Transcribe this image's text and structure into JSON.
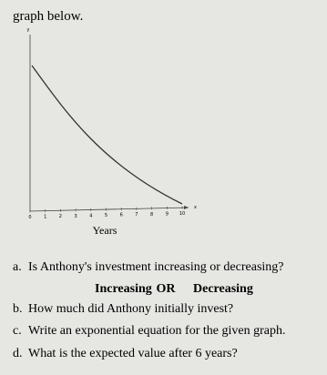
{
  "header": {
    "text": "graph below."
  },
  "graph": {
    "y_axis_label": "y",
    "x_axis_label": "x",
    "xticks": [
      "0",
      "1",
      "2",
      "3",
      "4",
      "5",
      "6",
      "7",
      "8",
      "9",
      "10"
    ],
    "x_title": "Years"
  },
  "questions": [
    {
      "label": "a.",
      "text": "Is Anthony's investment increasing or decreasing?"
    },
    {
      "label": "b.",
      "text": "How much did Anthony initially invest?"
    },
    {
      "label": "c.",
      "text": "Write an exponential equation for the given graph."
    },
    {
      "label": "d.",
      "text": "What is the expected value after 6 years?"
    }
  ],
  "choices": {
    "option1": "Increasing",
    "separator": "OR",
    "option2": "Decreasing"
  }
}
